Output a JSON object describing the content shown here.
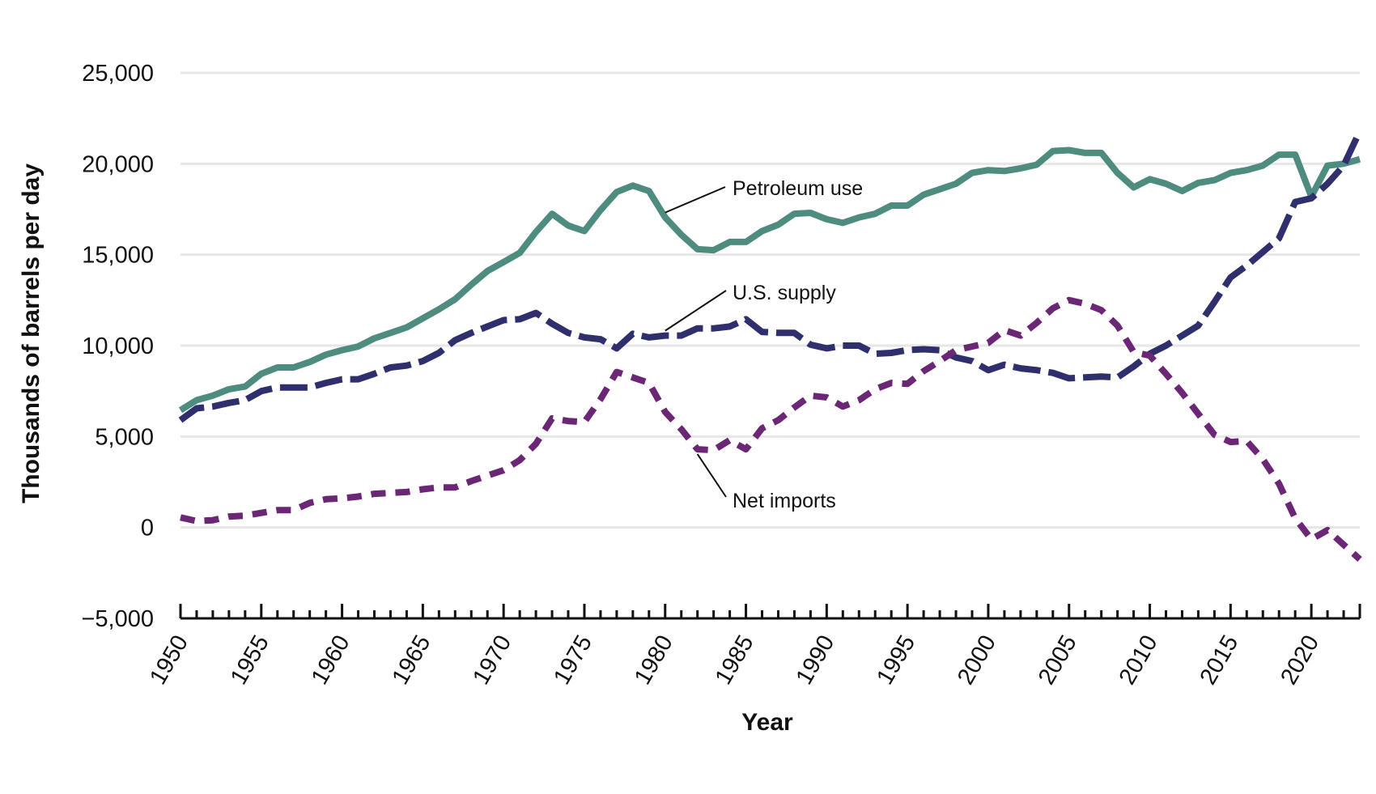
{
  "chart_data": {
    "type": "line",
    "title": "",
    "xlabel": "Year",
    "ylabel": "Thousands of barrels per day",
    "xlim": [
      1950,
      2023
    ],
    "ylim": [
      -5000,
      25000
    ],
    "yticks": [
      -5000,
      0,
      5000,
      10000,
      15000,
      20000,
      25000
    ],
    "ytick_labels": [
      "−5,000",
      "0",
      "5,000",
      "10,000",
      "15,000",
      "20,000",
      "25,000"
    ],
    "xticks": [
      1950,
      1955,
      1960,
      1965,
      1970,
      1975,
      1980,
      1985,
      1990,
      1995,
      2000,
      2005,
      2010,
      2015,
      2020
    ],
    "xtick_labels": [
      "1950",
      "1955",
      "1960",
      "1965",
      "1970",
      "1975",
      "1980",
      "1985",
      "1990",
      "1995",
      "2000",
      "2005",
      "2010",
      "2015",
      "2020"
    ],
    "grid": "horizontal",
    "colors": {
      "petroleum_use": "#4e8c80",
      "us_supply": "#2f2f6e",
      "net_imports": "#6b2675",
      "grid": "#e6e6e6",
      "axis": "#111111"
    },
    "series": [
      {
        "name": "Petroleum use",
        "style": "solid",
        "x": [
          1950,
          1951,
          1952,
          1953,
          1954,
          1955,
          1956,
          1957,
          1958,
          1959,
          1960,
          1961,
          1962,
          1963,
          1964,
          1965,
          1966,
          1967,
          1968,
          1969,
          1970,
          1971,
          1972,
          1973,
          1974,
          1975,
          1976,
          1977,
          1978,
          1979,
          1980,
          1981,
          1982,
          1983,
          1984,
          1985,
          1986,
          1987,
          1988,
          1989,
          1990,
          1991,
          1992,
          1993,
          1994,
          1995,
          1996,
          1997,
          1998,
          1999,
          2000,
          2001,
          2002,
          2003,
          2004,
          2005,
          2006,
          2007,
          2008,
          2009,
          2010,
          2011,
          2012,
          2013,
          2014,
          2015,
          2016,
          2017,
          2018,
          2019,
          2020,
          2021,
          2022,
          2023
        ],
        "values": [
          6450,
          7000,
          7250,
          7600,
          7750,
          8450,
          8800,
          8800,
          9100,
          9500,
          9750,
          9950,
          10400,
          10700,
          11000,
          11500,
          12000,
          12550,
          13350,
          14100,
          14600,
          15100,
          16250,
          17250,
          16600,
          16300,
          17450,
          18450,
          18800,
          18500,
          17050,
          16100,
          15300,
          15250,
          15700,
          15700,
          16300,
          16650,
          17250,
          17300,
          16950,
          16750,
          17050,
          17250,
          17700,
          17700,
          18300,
          18600,
          18900,
          19500,
          19650,
          19600,
          19750,
          19950,
          20700,
          20750,
          20600,
          20600,
          19500,
          18700,
          19150,
          18900,
          18500,
          18950,
          19100,
          19500,
          19650,
          19900,
          20500,
          20500,
          18200,
          19900,
          20000,
          20250
        ]
      },
      {
        "name": "U.S. supply",
        "style": "dashed",
        "x": [
          1950,
          1951,
          1952,
          1953,
          1954,
          1955,
          1956,
          1957,
          1958,
          1959,
          1960,
          1961,
          1962,
          1963,
          1964,
          1965,
          1966,
          1967,
          1968,
          1969,
          1970,
          1971,
          1972,
          1973,
          1974,
          1975,
          1976,
          1977,
          1978,
          1979,
          1980,
          1981,
          1982,
          1983,
          1984,
          1985,
          1986,
          1987,
          1988,
          1989,
          1990,
          1991,
          1992,
          1993,
          1994,
          1995,
          1996,
          1997,
          1998,
          1999,
          2000,
          2001,
          2002,
          2003,
          2004,
          2005,
          2006,
          2007,
          2008,
          2009,
          2010,
          2011,
          2012,
          2013,
          2014,
          2015,
          2016,
          2017,
          2018,
          2019,
          2020,
          2021,
          2022,
          2023
        ],
        "values": [
          5900,
          6550,
          6650,
          6850,
          7000,
          7500,
          7700,
          7700,
          7700,
          7950,
          8150,
          8150,
          8450,
          8800,
          8900,
          9150,
          9600,
          10300,
          10700,
          11050,
          11400,
          11450,
          11800,
          11200,
          10700,
          10450,
          10350,
          9850,
          10650,
          10450,
          10550,
          10550,
          10950,
          10950,
          11050,
          11450,
          10750,
          10700,
          10700,
          10050,
          9850,
          10000,
          10000,
          9550,
          9600,
          9750,
          9800,
          9750,
          9350,
          9150,
          8650,
          8950,
          8750,
          8650,
          8500,
          8200,
          8250,
          8300,
          8250,
          8850,
          9550,
          10000,
          10550,
          11100,
          12400,
          13750,
          14400,
          15150,
          15900,
          17900,
          18100,
          18900,
          19900,
          21800
        ]
      },
      {
        "name": "Net imports",
        "style": "dotted",
        "x": [
          1950,
          1951,
          1952,
          1953,
          1954,
          1955,
          1956,
          1957,
          1958,
          1959,
          1960,
          1961,
          1962,
          1963,
          1964,
          1965,
          1966,
          1967,
          1968,
          1969,
          1970,
          1971,
          1972,
          1973,
          1974,
          1975,
          1976,
          1977,
          1978,
          1979,
          1980,
          1981,
          1982,
          1983,
          1984,
          1985,
          1986,
          1987,
          1988,
          1989,
          1990,
          1991,
          1992,
          1993,
          1994,
          1995,
          1996,
          1997,
          1998,
          1999,
          2000,
          2001,
          2002,
          2003,
          2004,
          2005,
          2006,
          2007,
          2008,
          2009,
          2010,
          2011,
          2012,
          2013,
          2014,
          2015,
          2016,
          2017,
          2018,
          2019,
          2020,
          2021,
          2022,
          2023
        ],
        "values": [
          550,
          350,
          400,
          600,
          650,
          800,
          950,
          950,
          1350,
          1550,
          1600,
          1700,
          1850,
          1900,
          1950,
          2100,
          2200,
          2200,
          2550,
          2850,
          3150,
          3700,
          4600,
          6000,
          5850,
          5800,
          7050,
          8550,
          8250,
          7950,
          6350,
          5400,
          4300,
          4250,
          4800,
          4300,
          5450,
          5900,
          6600,
          7250,
          7150,
          6650,
          7000,
          7600,
          7950,
          7900,
          8600,
          9150,
          9750,
          9950,
          10150,
          10850,
          10550,
          11250,
          12050,
          12500,
          12300,
          11950,
          11100,
          9650,
          9450,
          8450,
          7400,
          6250,
          5100,
          4700,
          4750,
          3750,
          2400,
          500,
          -650,
          -150,
          -950,
          -1750
        ]
      }
    ],
    "annotations": [
      {
        "text": "Petroleum use",
        "series": "Petroleum use",
        "year": 1980
      },
      {
        "text": "U.S. supply",
        "series": "U.S. supply",
        "year": 1980
      },
      {
        "text": "Net imports",
        "series": "Net imports",
        "year": 1982
      }
    ]
  }
}
